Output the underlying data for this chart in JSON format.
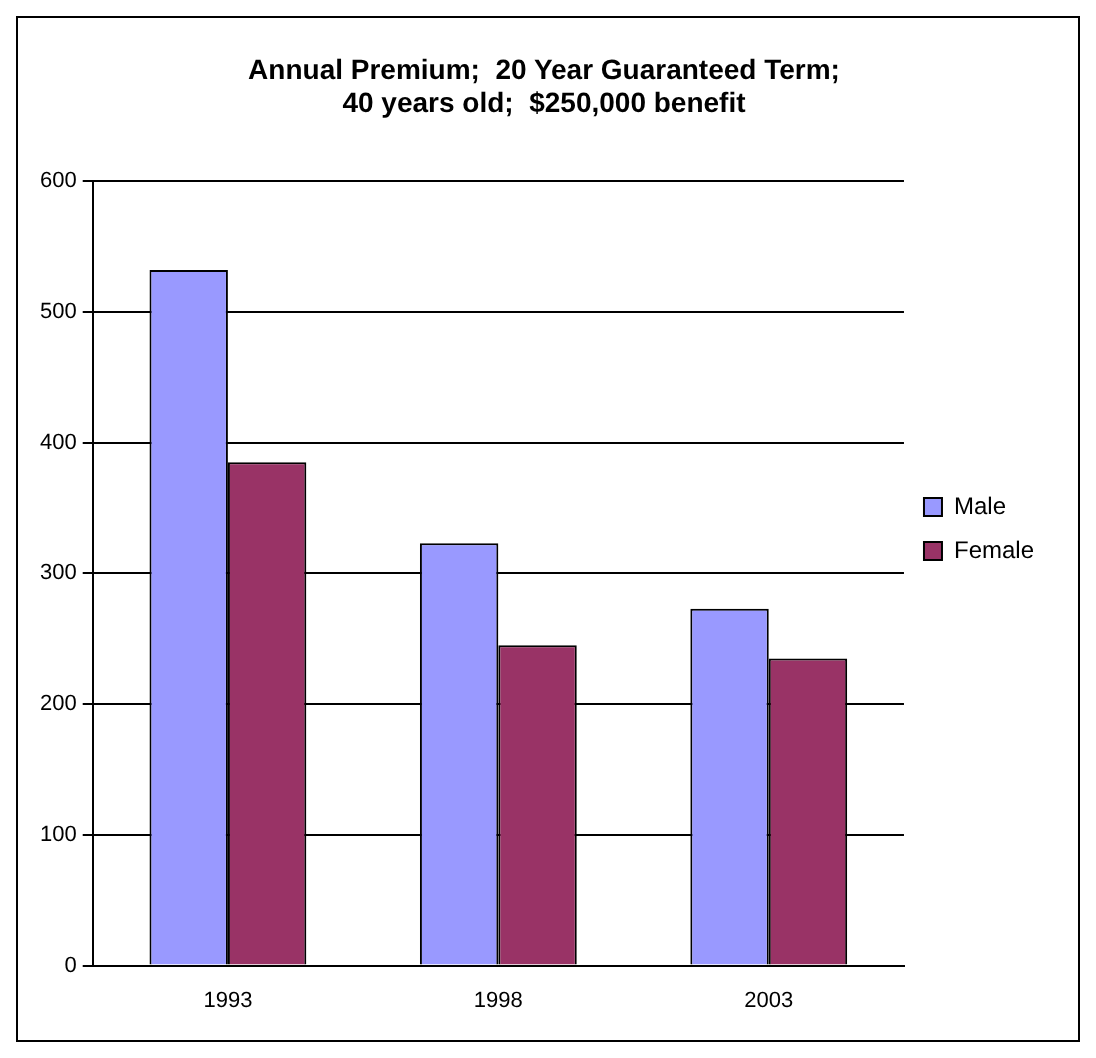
{
  "chart_data": {
    "type": "bar",
    "title": "Annual Premium;  20 Year Guaranteed Term;\n40 years old;  $250,000 benefit",
    "categories": [
      "1993",
      "1998",
      "2003"
    ],
    "series": [
      {
        "name": "Male",
        "color": "#9999ff",
        "values": [
          532,
          323,
          273
        ]
      },
      {
        "name": "Female",
        "color": "#993366",
        "values": [
          385,
          245,
          235
        ]
      }
    ],
    "ylim": [
      0,
      600
    ],
    "yticks": [
      0,
      100,
      200,
      300,
      400,
      500,
      600
    ],
    "grid": "y",
    "legend": "right"
  }
}
